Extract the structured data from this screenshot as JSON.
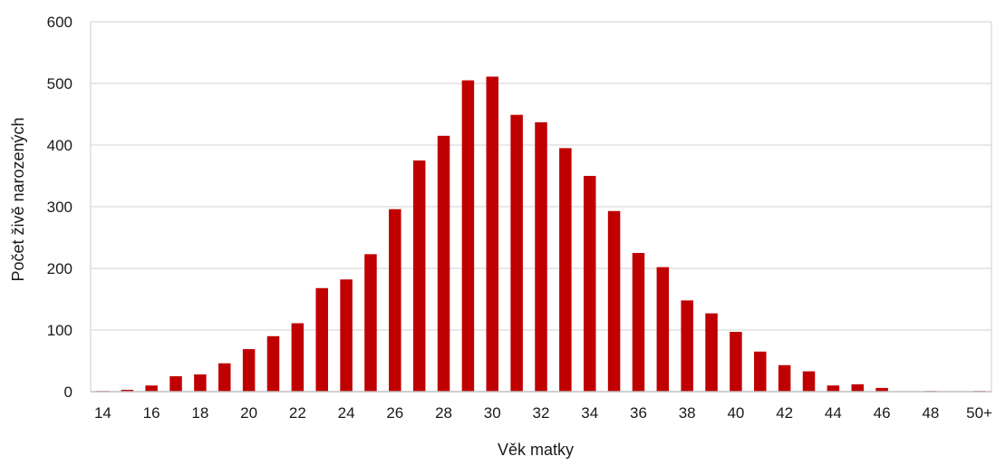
{
  "chart_data": {
    "type": "bar",
    "title": "",
    "xlabel": "Věk matky",
    "ylabel": "Počet živě narozených",
    "categories": [
      "14",
      "15",
      "16",
      "17",
      "18",
      "19",
      "20",
      "21",
      "22",
      "23",
      "24",
      "25",
      "26",
      "27",
      "28",
      "29",
      "30",
      "31",
      "32",
      "33",
      "34",
      "35",
      "36",
      "37",
      "38",
      "39",
      "40",
      "41",
      "42",
      "43",
      "44",
      "45",
      "46",
      "47",
      "48",
      "49",
      "50+"
    ],
    "x_tick_labels": [
      "14",
      "16",
      "18",
      "20",
      "22",
      "24",
      "26",
      "28",
      "30",
      "32",
      "34",
      "36",
      "38",
      "40",
      "42",
      "44",
      "46",
      "48",
      "50+"
    ],
    "values": [
      1,
      3,
      10,
      25,
      28,
      46,
      69,
      90,
      111,
      168,
      182,
      223,
      296,
      375,
      415,
      505,
      511,
      449,
      437,
      395,
      350,
      293,
      225,
      202,
      148,
      127,
      97,
      65,
      43,
      33,
      10,
      12,
      6,
      0,
      1,
      0,
      1
    ],
    "ylim": [
      0,
      600
    ],
    "yticks": [
      0,
      100,
      200,
      300,
      400,
      500,
      600
    ],
    "grid": true,
    "bar_color": "#C00000",
    "grid_color": "#D9D9D9"
  }
}
